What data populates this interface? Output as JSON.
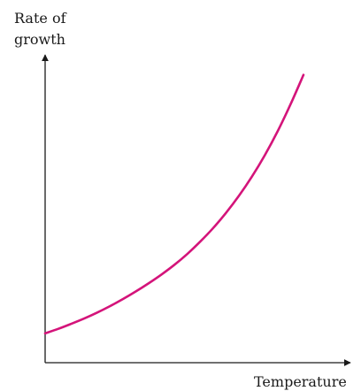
{
  "chart_data": {
    "type": "line",
    "title": "",
    "xlabel": "Temperature",
    "ylabel_lines": [
      "Rate of",
      "growth"
    ],
    "x_ticks": [],
    "y_ticks": [],
    "grid": false,
    "legend": "none",
    "series_color": "#d4147a",
    "axis_color": "#1a1a1a",
    "series": [
      {
        "x": [
          0,
          0.05,
          0.1,
          0.15,
          0.2,
          0.25,
          0.3,
          0.35,
          0.4,
          0.45,
          0.5,
          0.55,
          0.6,
          0.65,
          0.7,
          0.75,
          0.8,
          0.85,
          0.9,
          0.95,
          1.0
        ],
        "y": [
          0.1,
          0.115,
          0.132,
          0.15,
          0.17,
          0.192,
          0.216,
          0.242,
          0.27,
          0.3,
          0.333,
          0.37,
          0.412,
          0.458,
          0.51,
          0.568,
          0.633,
          0.706,
          0.788,
          0.88,
          0.98
        ]
      }
    ],
    "xlim": [
      0,
      1.0
    ],
    "ylim": [
      0,
      1.0
    ]
  }
}
